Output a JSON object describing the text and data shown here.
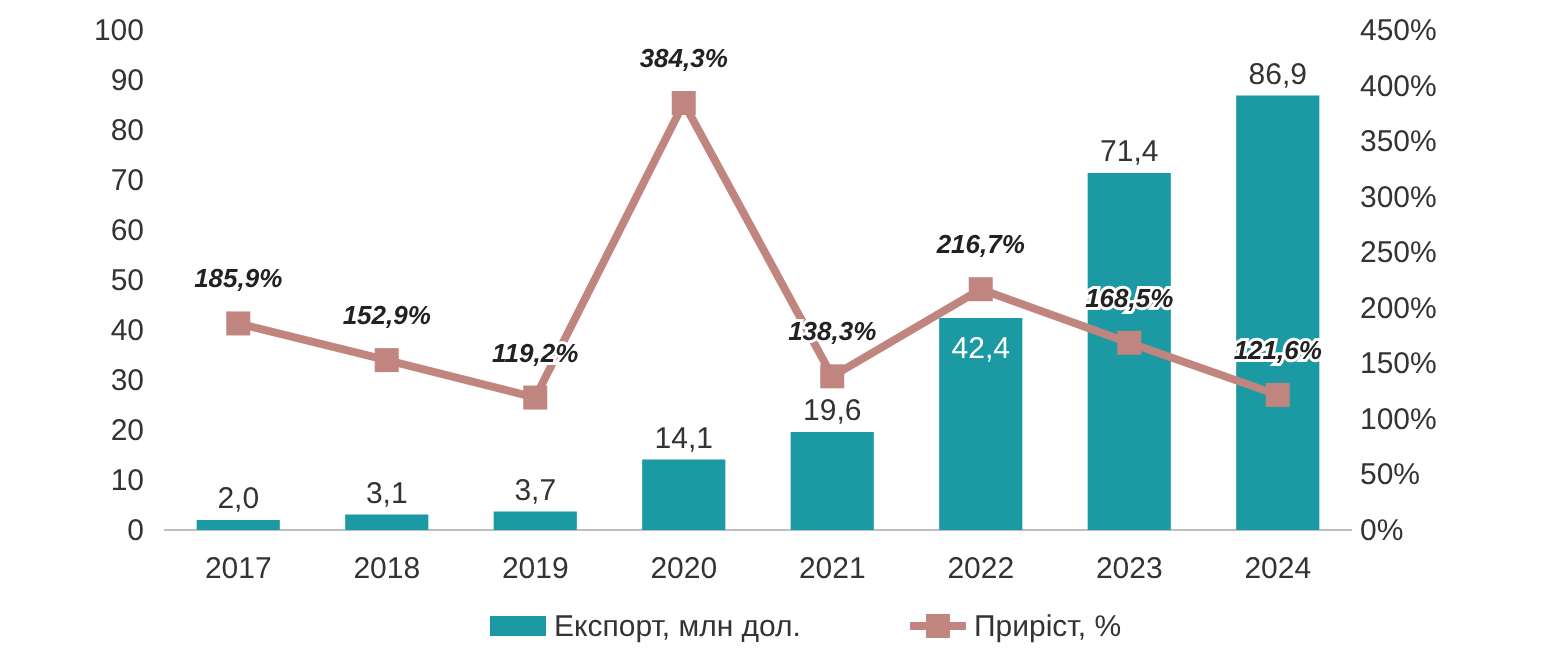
{
  "chart_data": {
    "type": "bar",
    "categories": [
      "2017",
      "2018",
      "2019",
      "2020",
      "2021",
      "2022",
      "2023",
      "2024"
    ],
    "series": [
      {
        "name": "Експорт, млн дол.",
        "color": "#1b9aa3",
        "values": [
          2.0,
          3.1,
          3.7,
          14.1,
          19.6,
          42.4,
          71.4,
          86.9
        ],
        "value_labels": [
          "2,0",
          "3,1",
          "3,7",
          "14,1",
          "19,6",
          "42,4",
          "71,4",
          "86,9"
        ]
      },
      {
        "name": "Приріст, %",
        "type": "line",
        "axis": "y2",
        "color": "#c0857f",
        "marker": "square",
        "values": [
          185.9,
          152.9,
          119.2,
          384.3,
          138.3,
          216.7,
          168.5,
          121.6
        ],
        "value_labels": [
          "185,9%",
          "152,9%",
          "119,2%",
          "384,3%",
          "138,3%",
          "216,7%",
          "168,5%",
          "121,6%"
        ]
      }
    ],
    "ylim": [
      0,
      100
    ],
    "yticks": [
      0,
      10,
      20,
      30,
      40,
      50,
      60,
      70,
      80,
      90,
      100
    ],
    "y2lim": [
      0,
      450
    ],
    "y2ticks": [
      {
        "value": 0,
        "label": "0%"
      },
      {
        "value": 50,
        "label": "50%"
      },
      {
        "value": 100,
        "label": "100%"
      },
      {
        "value": 150,
        "label": "150%"
      },
      {
        "value": 200,
        "label": "200%"
      },
      {
        "value": 250,
        "label": "250%"
      },
      {
        "value": 300,
        "label": "300%"
      },
      {
        "value": 350,
        "label": "350%"
      },
      {
        "value": 400,
        "label": "400%"
      },
      {
        "value": 450,
        "label": "450%"
      }
    ],
    "legend": "bottom"
  }
}
